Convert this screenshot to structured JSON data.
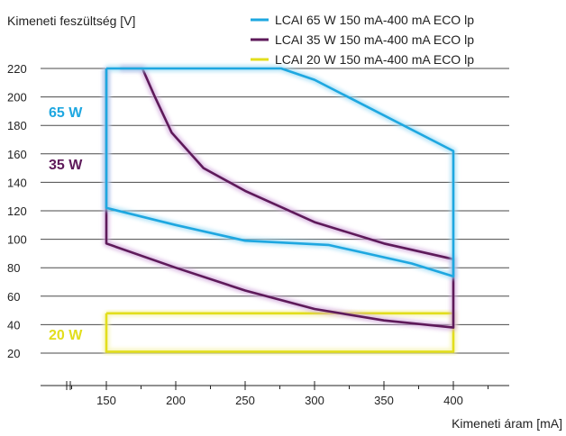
{
  "chart_data": {
    "type": "line",
    "ylabel": "Kimeneti feszültség [V]",
    "xlabel": "Kimeneti áram [mA]",
    "xlim": [
      100,
      425
    ],
    "ylim": [
      10,
      223
    ],
    "x_ticks": [
      150,
      200,
      250,
      300,
      350,
      400
    ],
    "y_ticks": [
      20,
      40,
      60,
      80,
      100,
      120,
      140,
      160,
      180,
      200,
      220
    ],
    "grid": "horizontal",
    "legend_position": "top-right",
    "series": [
      {
        "name": "LCAI 65 W 150 mA-400 mA ECO lp",
        "label": "65 W",
        "color": "#1ea7e0",
        "glow": "#9fdcf5",
        "points": [
          [
            150,
            220
          ],
          [
            276,
            220
          ],
          [
            300,
            212
          ],
          [
            400,
            162
          ],
          [
            400,
            74
          ],
          [
            370,
            83
          ],
          [
            310,
            96
          ],
          [
            250,
            99
          ],
          [
            200,
            110
          ],
          [
            150,
            122
          ],
          [
            150,
            220
          ]
        ]
      },
      {
        "name": "LCAI 35 W 150 mA-400 mA ECO lp",
        "label": "35 W",
        "color": "#5e1a5a",
        "glow": "#d2a9dd",
        "points": [
          [
            160,
            220
          ],
          [
            176,
            220
          ],
          [
            185,
            200
          ],
          [
            197,
            175
          ],
          [
            220,
            150
          ],
          [
            250,
            134
          ],
          [
            300,
            112
          ],
          [
            350,
            97
          ],
          [
            400,
            86
          ],
          [
            400,
            38
          ],
          [
            350,
            43
          ],
          [
            300,
            51
          ],
          [
            250,
            64
          ],
          [
            200,
            80
          ],
          [
            150,
            97
          ],
          [
            150,
            220
          ]
        ]
      },
      {
        "name": "LCAI 20 W 150 mA-400 mA ECO lp",
        "label": "20 W",
        "color": "#e2de1c",
        "glow": "#f5f3a8",
        "points": [
          [
            150,
            48
          ],
          [
            400,
            48
          ],
          [
            400,
            21
          ],
          [
            150,
            21
          ],
          [
            150,
            48
          ]
        ]
      }
    ]
  }
}
